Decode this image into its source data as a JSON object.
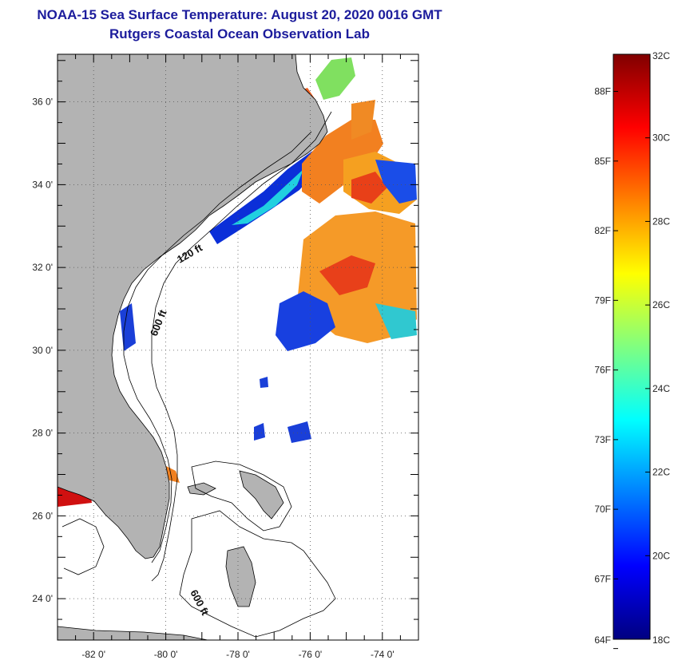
{
  "title": {
    "line1": "NOAA-15 Sea Surface Temperature:  August 20, 2020 0016 GMT",
    "line2": "Rutgers Coastal Ocean Observation Lab"
  },
  "map": {
    "lat_range": [
      23,
      37.15
    ],
    "lon_range": [
      -83,
      -73
    ],
    "lat_ticks": [
      {
        "value": 36,
        "label": "36 0'"
      },
      {
        "value": 34,
        "label": "34 0'"
      },
      {
        "value": 32,
        "label": "32 0'"
      },
      {
        "value": 30,
        "label": "30 0'"
      },
      {
        "value": 28,
        "label": "28 0'"
      },
      {
        "value": 26,
        "label": "26 0'"
      },
      {
        "value": 24,
        "label": "24 0'"
      }
    ],
    "lon_ticks": [
      {
        "value": -82,
        "label": "-82 0'"
      },
      {
        "value": -80,
        "label": "-80 0'"
      },
      {
        "value": -78,
        "label": "-78 0'"
      },
      {
        "value": -76,
        "label": "-76 0'"
      },
      {
        "value": -74,
        "label": "-74 0'"
      }
    ],
    "grid": "dotted",
    "contour_labels": [
      "120 ft",
      "600 ft",
      "600 ft"
    ],
    "colors": {
      "land": "#b3b3b3",
      "ocean_no_data": "#ffffff",
      "coast": "#000000"
    }
  },
  "colorbar": {
    "celsius_labels": [
      {
        "value": 32,
        "label": "32C"
      },
      {
        "value": 30,
        "label": "30C"
      },
      {
        "value": 28,
        "label": "28C"
      },
      {
        "value": 26,
        "label": "26C"
      },
      {
        "value": 24,
        "label": "24C"
      },
      {
        "value": 22,
        "label": "22C"
      },
      {
        "value": 20,
        "label": "20C"
      },
      {
        "value": 18,
        "label": "18C"
      }
    ],
    "fahrenheit_labels": [
      {
        "value": 88,
        "label": "88F"
      },
      {
        "value": 85,
        "label": "85F"
      },
      {
        "value": 82,
        "label": "82F"
      },
      {
        "value": 79,
        "label": "79F"
      },
      {
        "value": 76,
        "label": "76F"
      },
      {
        "value": 73,
        "label": "73F"
      },
      {
        "value": 70,
        "label": "70F"
      },
      {
        "value": 67,
        "label": "67F"
      },
      {
        "value": 64,
        "label": "64F"
      }
    ],
    "range_c": [
      18,
      32
    ],
    "stops": [
      "#000080",
      "#0000ff",
      "#0080ff",
      "#00ffff",
      "#80ff80",
      "#ffff00",
      "#ff8000",
      "#ff0000",
      "#800000"
    ]
  }
}
